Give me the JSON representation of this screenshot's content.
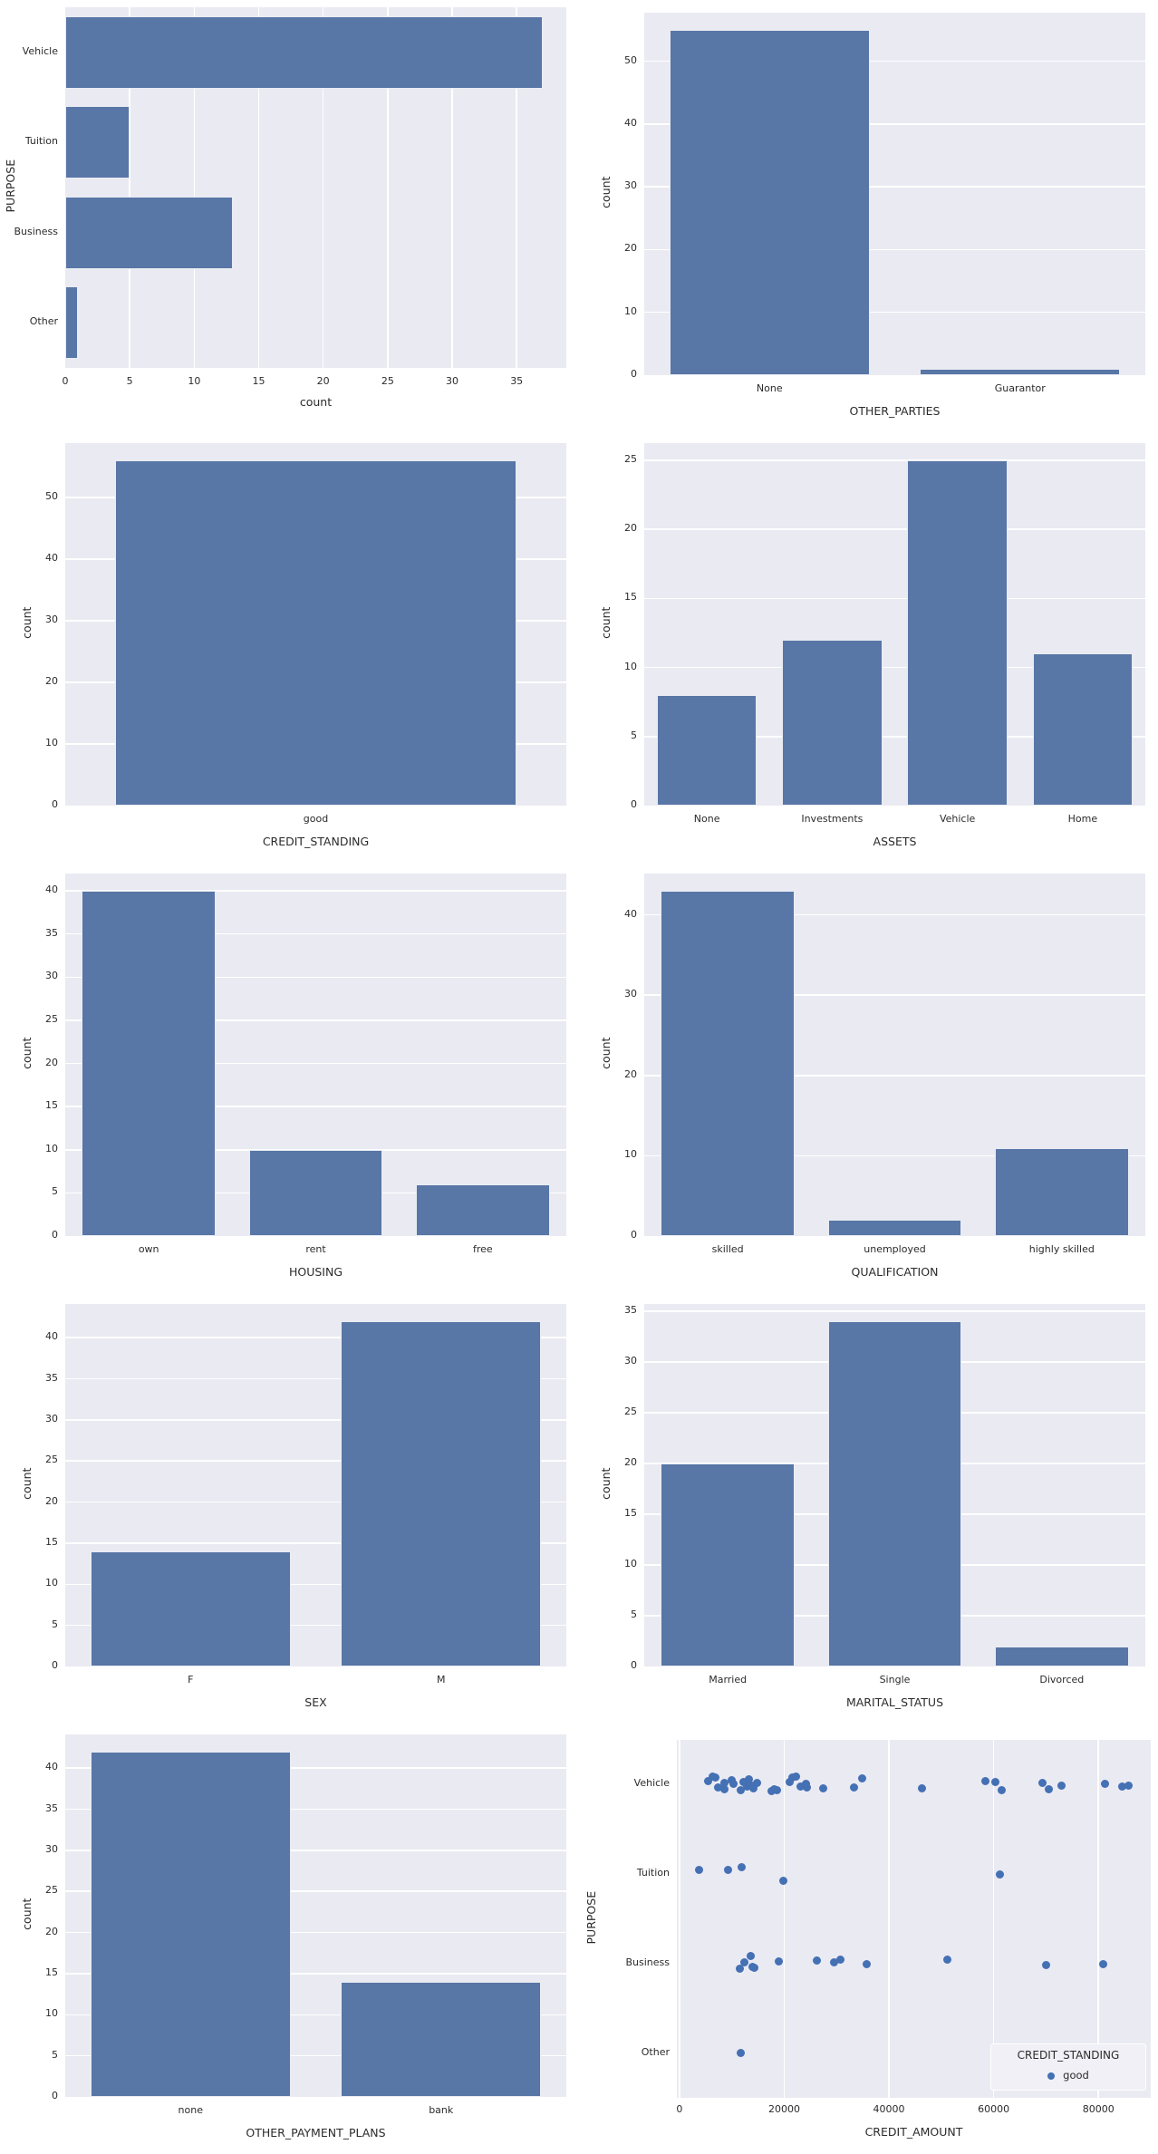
{
  "figure": {
    "description": "Grid of seaborn count plots and one scatter plot for credit dataset"
  },
  "style": {
    "plot_bg": "#eaeaf2",
    "grid_color": "#ffffff",
    "bar_color": "#5876a6",
    "bar_edge": "rgba(250,250,252,0.9)",
    "dot_color": "#4470b4",
    "text_color": "#2b2b2b",
    "legend_bg": "#f0f0f6",
    "legend_border": "#ffffff"
  },
  "chart_data": [
    {
      "type": "bar",
      "orientation": "horizontal",
      "title": "",
      "categories": [
        "Vehicle",
        "Tuition",
        "Business",
        "Other"
      ],
      "values": [
        37,
        5,
        13,
        1
      ],
      "xlabel": "count",
      "ylabel": "PURPOSE",
      "xticks": [
        0,
        5,
        10,
        15,
        20,
        25,
        30,
        35
      ],
      "xlim": [
        0,
        38.85
      ],
      "grid": true,
      "legend_position": "none"
    },
    {
      "type": "bar",
      "orientation": "vertical",
      "categories": [
        "None",
        "Guarantor"
      ],
      "values": [
        55,
        1
      ],
      "xlabel": "OTHER_PARTIES",
      "ylabel": "count",
      "yticks": [
        0,
        10,
        20,
        30,
        40,
        50
      ],
      "ylim": [
        0,
        57.75
      ],
      "grid": true,
      "legend_position": "none"
    },
    {
      "type": "bar",
      "orientation": "vertical",
      "categories": [
        "good"
      ],
      "values": [
        56
      ],
      "xlabel": "CREDIT_STANDING",
      "ylabel": "count",
      "yticks": [
        0,
        10,
        20,
        30,
        40,
        50
      ],
      "ylim": [
        0,
        58.8
      ],
      "grid": true,
      "legend_position": "none"
    },
    {
      "type": "bar",
      "orientation": "vertical",
      "categories": [
        "None",
        "Investments",
        "Vehicle",
        "Home"
      ],
      "values": [
        8,
        12,
        25,
        11
      ],
      "xlabel": "ASSETS",
      "ylabel": "count",
      "yticks": [
        0,
        5,
        10,
        15,
        20,
        25
      ],
      "ylim": [
        0,
        26.25
      ],
      "grid": true,
      "legend_position": "none"
    },
    {
      "type": "bar",
      "orientation": "vertical",
      "categories": [
        "own",
        "rent",
        "free"
      ],
      "values": [
        40,
        10,
        6
      ],
      "xlabel": "HOUSING",
      "ylabel": "count",
      "yticks": [
        0,
        5,
        10,
        15,
        20,
        25,
        30,
        35,
        40
      ],
      "ylim": [
        0,
        42
      ],
      "grid": true,
      "legend_position": "none"
    },
    {
      "type": "bar",
      "orientation": "vertical",
      "categories": [
        "skilled",
        "unemployed",
        "highly skilled"
      ],
      "values": [
        43,
        2,
        11
      ],
      "xlabel": "QUALIFICATION",
      "ylabel": "count",
      "yticks": [
        0,
        10,
        20,
        30,
        40
      ],
      "ylim": [
        0,
        45.15
      ],
      "grid": true,
      "legend_position": "none"
    },
    {
      "type": "bar",
      "orientation": "vertical",
      "categories": [
        "F",
        "M"
      ],
      "values": [
        14,
        42
      ],
      "xlabel": "SEX",
      "ylabel": "count",
      "yticks": [
        0,
        5,
        10,
        15,
        20,
        25,
        30,
        35,
        40
      ],
      "ylim": [
        0,
        44.1
      ],
      "grid": true,
      "legend_position": "none"
    },
    {
      "type": "bar",
      "orientation": "vertical",
      "categories": [
        "Married",
        "Single",
        "Divorced"
      ],
      "values": [
        20,
        34,
        2
      ],
      "xlabel": "MARITAL_STATUS",
      "ylabel": "count",
      "yticks": [
        0,
        5,
        10,
        15,
        20,
        25,
        30,
        35
      ],
      "ylim": [
        0,
        35.7
      ],
      "grid": true,
      "legend_position": "none"
    },
    {
      "type": "bar",
      "orientation": "vertical",
      "categories": [
        "none",
        "bank"
      ],
      "values": [
        42,
        14
      ],
      "xlabel": "OTHER_PAYMENT_PLANS",
      "ylabel": "count",
      "yticks": [
        0,
        5,
        10,
        15,
        20,
        25,
        30,
        35,
        40
      ],
      "ylim": [
        0,
        44.1
      ],
      "grid": true,
      "legend_position": "none"
    },
    {
      "type": "scatter",
      "xlabel": "CREDIT_AMOUNT",
      "ylabel": "PURPOSE",
      "categories": [
        "Vehicle",
        "Tuition",
        "Business",
        "Other"
      ],
      "xticks": [
        0,
        20000,
        40000,
        60000,
        80000
      ],
      "xlim": [
        -500,
        90000
      ],
      "grid": true,
      "legend": {
        "title": "CREDIT_STANDING",
        "items": [
          {
            "label": "good"
          }
        ],
        "position": "lower right"
      },
      "series": [
        {
          "name": "good",
          "points": [
            [
              0,
              5400,
              -4
            ],
            [
              0,
              6300,
              -9
            ],
            [
              0,
              6800,
              -8
            ],
            [
              0,
              7300,
              3
            ],
            [
              0,
              8500,
              -2
            ],
            [
              0,
              8600,
              5
            ],
            [
              0,
              9900,
              -5
            ],
            [
              0,
              10300,
              -1
            ],
            [
              0,
              11700,
              6
            ],
            [
              0,
              12300,
              -3
            ],
            [
              0,
              12900,
              2
            ],
            [
              0,
              13300,
              -6
            ],
            [
              0,
              13700,
              1
            ],
            [
              0,
              14100,
              4
            ],
            [
              0,
              14800,
              -2
            ],
            [
              0,
              17600,
              7
            ],
            [
              0,
              18100,
              5
            ],
            [
              0,
              18700,
              6
            ],
            [
              0,
              21100,
              -3
            ],
            [
              0,
              21500,
              -8
            ],
            [
              0,
              22300,
              -9
            ],
            [
              0,
              23200,
              2
            ],
            [
              0,
              24100,
              -1
            ],
            [
              0,
              24400,
              3
            ],
            [
              0,
              27400,
              4
            ],
            [
              0,
              33400,
              3
            ],
            [
              0,
              34900,
              -7
            ],
            [
              0,
              46300,
              4
            ],
            [
              0,
              58500,
              -4
            ],
            [
              0,
              60400,
              -3
            ],
            [
              0,
              61600,
              6
            ],
            [
              0,
              69400,
              -2
            ],
            [
              0,
              70600,
              5
            ],
            [
              0,
              73000,
              1
            ],
            [
              0,
              81300,
              -1
            ],
            [
              0,
              84500,
              2
            ],
            [
              0,
              85700,
              1
            ],
            [
              1,
              3800,
              -5
            ],
            [
              1,
              9200,
              -5
            ],
            [
              1,
              11800,
              -8
            ],
            [
              1,
              19900,
              7
            ],
            [
              1,
              61200,
              0
            ],
            [
              2,
              11500,
              6
            ],
            [
              2,
              12400,
              -1
            ],
            [
              2,
              13600,
              -8
            ],
            [
              2,
              13900,
              4
            ],
            [
              2,
              14300,
              5
            ],
            [
              2,
              19000,
              -2
            ],
            [
              2,
              26300,
              -3
            ],
            [
              2,
              29600,
              -1
            ],
            [
              2,
              30800,
              -4
            ],
            [
              2,
              35700,
              1
            ],
            [
              2,
              51200,
              -4
            ],
            [
              2,
              70000,
              2
            ],
            [
              2,
              81000,
              1
            ],
            [
              3,
              11700,
              0
            ]
          ]
        }
      ]
    }
  ]
}
